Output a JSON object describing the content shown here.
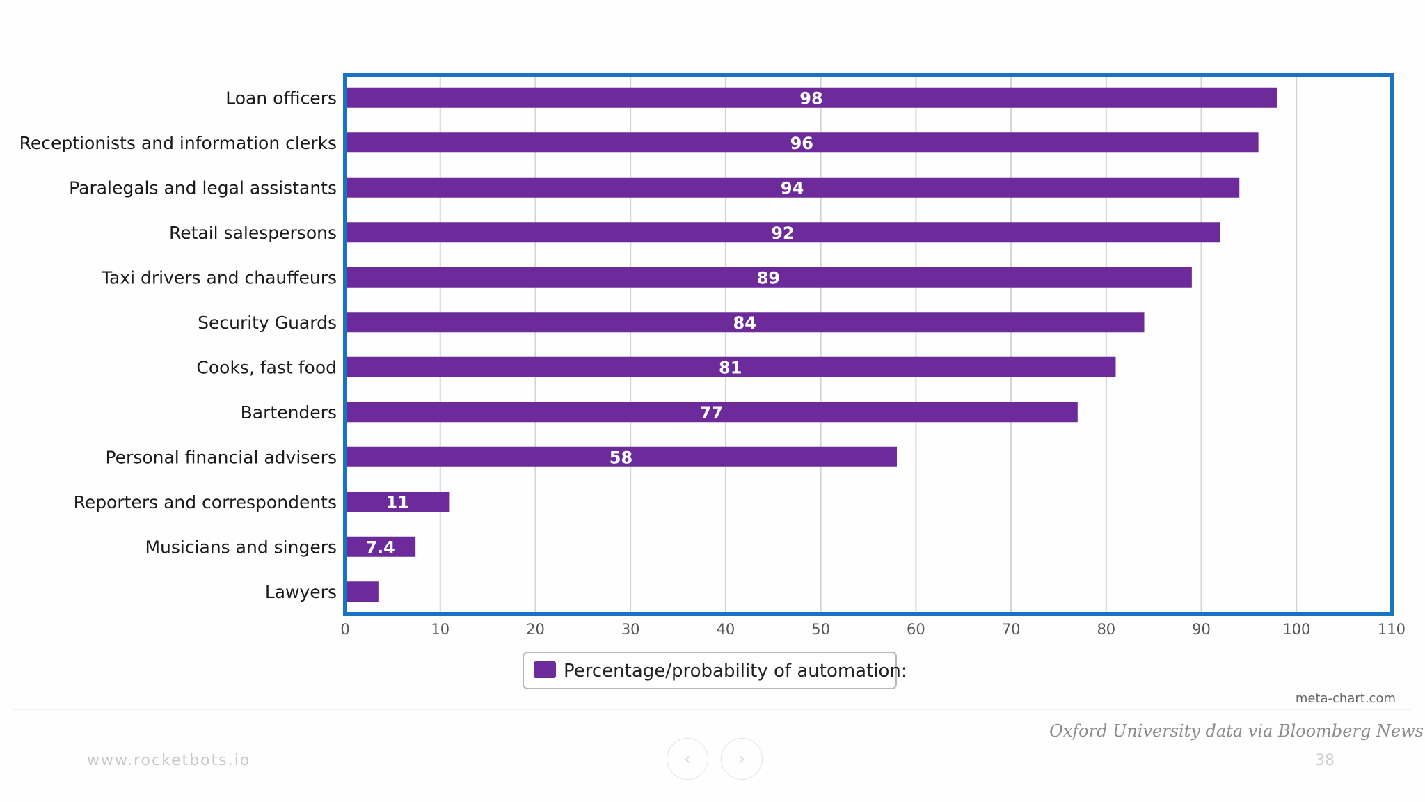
{
  "chart_data": {
    "type": "bar",
    "orientation": "horizontal",
    "categories": [
      "Loan officers",
      "Receptionists and information clerks",
      "Paralegals and legal assistants",
      "Retail salespersons",
      "Taxi drivers and chauffeurs",
      "Security Guards",
      "Cooks, fast food",
      "Bartenders",
      "Personal financial advisers",
      "Reporters and correspondents",
      "Musicians and singers",
      "Lawyers"
    ],
    "values": [
      98,
      96,
      94,
      92,
      89,
      84,
      81,
      77,
      58,
      11,
      7.4,
      3.5
    ],
    "value_labels": [
      "98",
      "96",
      "94",
      "92",
      "89",
      "84",
      "81",
      "77",
      "58",
      "11",
      "7.4",
      ""
    ],
    "xlim": [
      0,
      110
    ],
    "xticks": [
      "0",
      "10",
      "20",
      "30",
      "40",
      "50",
      "60",
      "70",
      "80",
      "90",
      "100",
      "110"
    ],
    "legend": "Percentage/probability of automation:",
    "credit": "meta-chart.com",
    "colors": {
      "bar": "#6c2a9a",
      "frame": "#1a73c2",
      "grid": "#d4d4d4"
    }
  },
  "source": "Oxford University data via Bloomberg News",
  "footer": {
    "url": "www.rocketbots.io",
    "page": "38"
  }
}
